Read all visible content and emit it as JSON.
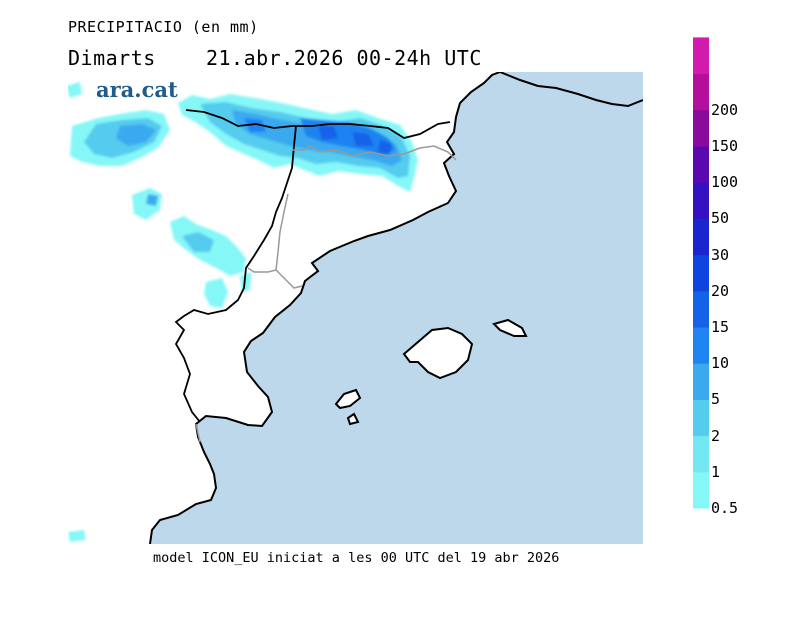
{
  "header": {
    "variable_title": "PRECIPITACIO (en mm)",
    "day_name": "Dimarts",
    "date": "21.abr.2026",
    "period": "00-24h UTC"
  },
  "brand": {
    "logo_text": "ara.cat"
  },
  "footer": {
    "model_note": "model ICON_EU iniciat a les 00 UTC del 19 abr 2026"
  },
  "legend": {
    "levels": [
      {
        "label": "0.5",
        "color": "#86f7f7"
      },
      {
        "label": "1",
        "color": "#73e8f2"
      },
      {
        "label": "2",
        "color": "#55cbee"
      },
      {
        "label": "5",
        "color": "#3aa9ef"
      },
      {
        "label": "10",
        "color": "#1f83f0"
      },
      {
        "label": "15",
        "color": "#1462e8"
      },
      {
        "label": "20",
        "color": "#0f44dd"
      },
      {
        "label": "30",
        "color": "#1a26cc"
      },
      {
        "label": "50",
        "color": "#3511c2"
      },
      {
        "label": "100",
        "color": "#5a09b0"
      },
      {
        "label": "150",
        "color": "#8a0a9b"
      },
      {
        "label": "200",
        "color": "#b40e9c"
      }
    ],
    "top_color": "#d21aae"
  },
  "colors": {
    "sea": "#bcd8ea",
    "land": "#ffffff",
    "coast": "#000000",
    "border": "#9a9a9a"
  }
}
